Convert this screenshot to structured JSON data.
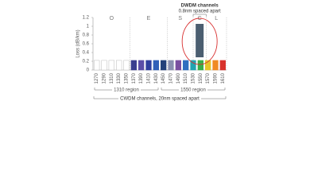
{
  "chart_data": {
    "type": "bar",
    "y_label": "Loss (dB/km)",
    "x": [
      1270,
      1290,
      1310,
      1330,
      1350,
      1370,
      1390,
      1410,
      1430,
      1450,
      1470,
      1490,
      1510,
      1530,
      1550,
      1570,
      1590,
      1610
    ],
    "values": [
      0.22,
      0.22,
      0.22,
      0.22,
      0.22,
      0.22,
      0.22,
      0.22,
      0.22,
      0.22,
      0.22,
      0.22,
      0.22,
      0.22,
      0.22,
      0.22,
      0.22,
      0.22
    ],
    "colors": [
      "#ffffff",
      "#ffffff",
      "#ffffff",
      "#ffffff",
      "#ffffff",
      "#3b3f8f",
      "#5b4ea8",
      "#2f3f9e",
      "#3060b8",
      "#23407a",
      "#8a8fb0",
      "#7a4fa0",
      "#2f6fc0",
      "#22a3b0",
      "#3aae4a",
      "#e6c52a",
      "#f08a24",
      "#d8322c"
    ],
    "xlim": [
      1260,
      1620
    ],
    "ylim": [
      0,
      1.2
    ],
    "yticks": [
      0,
      0.2,
      0.4,
      0.6,
      0.8,
      1,
      1.2
    ],
    "bands": [
      {
        "label": "O",
        "range": [
          1260,
          1360
        ]
      },
      {
        "label": "E",
        "range": [
          1360,
          1460
        ]
      },
      {
        "label": "S",
        "range": [
          1460,
          1530
        ]
      },
      {
        "label": "C",
        "range": [
          1530,
          1565
        ]
      },
      {
        "label": "L",
        "range": [
          1565,
          1625
        ]
      }
    ],
    "regions": [
      {
        "label": "1310 region",
        "range": [
          1260,
          1440
        ]
      },
      {
        "label": "1550 region",
        "range": [
          1440,
          1620
        ]
      }
    ],
    "dwdm_note": [
      "DWDM channels",
      "0.8nm spaced apart"
    ],
    "cwdm_note": "CWDM channels, 20nm spaced apart"
  }
}
